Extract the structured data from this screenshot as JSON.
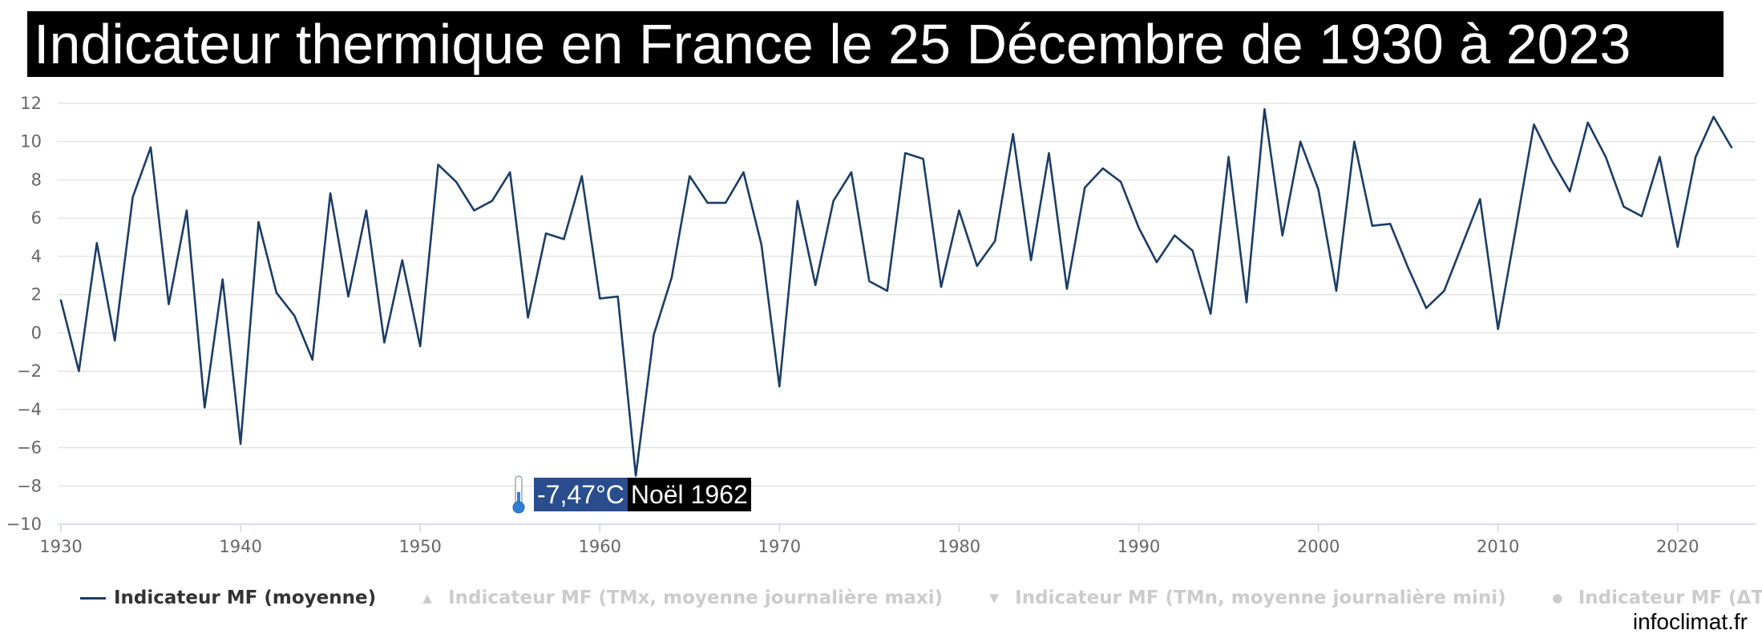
{
  "title": "Indicateur thermique en France le 25 Décembre de 1930 à 2023",
  "colors": {
    "series": "#1b3d66",
    "grid": "#e0e0e0",
    "hidden": "#cccccc",
    "annotation_temp_bg": "#2a4d8e"
  },
  "annotation": {
    "icon": "thermometer-icon",
    "temperature": "-7,47°C",
    "event": "Noël 1962"
  },
  "legend": [
    {
      "label": "Indicateur MF (moyenne)",
      "symbol": "line",
      "active": true
    },
    {
      "label": "Indicateur MF (TMx, moyenne journalière maxi)",
      "symbol": "▲",
      "active": false
    },
    {
      "label": "Indicateur MF (TMn, moyenne journalière mini)",
      "symbol": "▼",
      "active": false
    },
    {
      "label": "Indicateur MF (ΔT)",
      "symbol": "●",
      "active": false
    }
  ],
  "credit": "infoclimat.fr",
  "chart_data": {
    "type": "line",
    "title": "Indicateur thermique en France le 25 Décembre de 1930 à 2023",
    "xlim": [
      1930,
      2023
    ],
    "ylim": [
      -10,
      12
    ],
    "grid": true,
    "legend_position": "bottom",
    "x_ticks": [
      1930,
      1940,
      1950,
      1960,
      1970,
      1980,
      1990,
      2000,
      2010,
      2020
    ],
    "y_ticks": [
      -10,
      -8,
      -6,
      -4,
      -2,
      0,
      2,
      4,
      6,
      8,
      10,
      12
    ],
    "series": [
      {
        "name": "Indicateur MF (moyenne)",
        "x": [
          1930,
          1931,
          1932,
          1933,
          1934,
          1935,
          1936,
          1937,
          1938,
          1939,
          1940,
          1941,
          1942,
          1943,
          1944,
          1945,
          1946,
          1947,
          1948,
          1949,
          1950,
          1951,
          1952,
          1953,
          1954,
          1955,
          1956,
          1957,
          1958,
          1959,
          1960,
          1961,
          1962,
          1963,
          1964,
          1965,
          1966,
          1967,
          1968,
          1969,
          1970,
          1971,
          1972,
          1973,
          1974,
          1975,
          1976,
          1977,
          1978,
          1979,
          1980,
          1981,
          1982,
          1983,
          1984,
          1985,
          1986,
          1987,
          1988,
          1989,
          1990,
          1991,
          1992,
          1993,
          1994,
          1995,
          1996,
          1997,
          1998,
          1999,
          2000,
          2001,
          2002,
          2003,
          2004,
          2005,
          2006,
          2007,
          2008,
          2009,
          2010,
          2011,
          2012,
          2013,
          2014,
          2015,
          2016,
          2017,
          2018,
          2019,
          2020,
          2021,
          2022,
          2023
        ],
        "y": [
          1.7,
          -2.0,
          4.7,
          -0.4,
          7.1,
          9.7,
          1.5,
          6.4,
          -3.9,
          2.8,
          -5.8,
          5.8,
          2.1,
          0.9,
          -1.4,
          7.3,
          1.9,
          6.4,
          -0.5,
          3.8,
          -0.7,
          8.8,
          7.9,
          6.4,
          6.9,
          8.4,
          0.8,
          5.2,
          4.9,
          8.2,
          1.8,
          1.9,
          -7.47,
          -0.1,
          2.9,
          8.2,
          6.8,
          6.8,
          8.4,
          4.6,
          -2.8,
          6.9,
          2.5,
          6.9,
          8.4,
          2.7,
          2.2,
          9.4,
          9.1,
          2.4,
          6.4,
          3.5,
          4.8,
          10.4,
          3.8,
          9.4,
          2.3,
          7.6,
          8.6,
          7.9,
          5.5,
          3.7,
          5.1,
          4.3,
          1.0,
          9.2,
          1.6,
          11.7,
          5.1,
          10.0,
          7.5,
          2.2,
          10.0,
          5.6,
          5.7,
          3.4,
          1.3,
          2.2,
          4.6,
          7.0,
          0.2,
          5.5,
          10.9,
          9.0,
          7.4,
          11.0,
          9.2,
          6.6,
          6.1,
          9.2,
          4.5,
          9.2,
          11.3,
          9.7
        ]
      }
    ]
  }
}
